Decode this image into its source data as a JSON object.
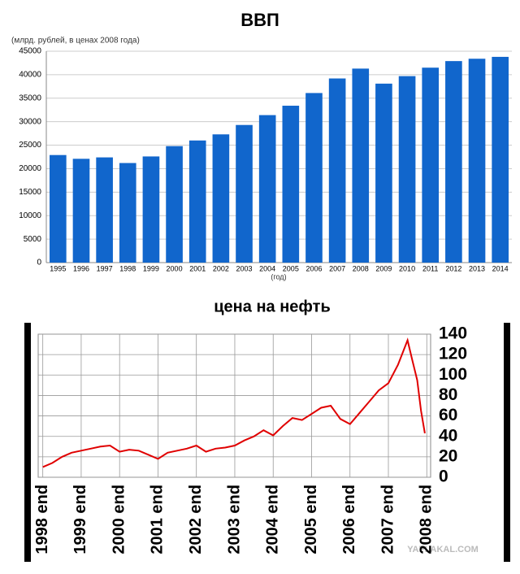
{
  "charts": [
    {
      "chart_data": {
        "type": "bar",
        "title": "ВВП",
        "subtitle": "(млрд. рублей, в ценах 2008 года)",
        "x_label": "(год)",
        "categories": [
          "1995",
          "1996",
          "1997",
          "1998",
          "1999",
          "2000",
          "2001",
          "2002",
          "2003",
          "2004",
          "2005",
          "2006",
          "2007",
          "2008",
          "2009",
          "2010",
          "2011",
          "2012",
          "2013",
          "2014"
        ],
        "values": [
          22900,
          22100,
          22400,
          21200,
          22600,
          24800,
          26000,
          27300,
          29300,
          31400,
          33400,
          36100,
          39200,
          41300,
          38100,
          39700,
          41500,
          42900,
          43400,
          43800
        ],
        "color": "#1166cc",
        "ylim": [
          0,
          45000
        ],
        "yticks": [
          0,
          5000,
          10000,
          15000,
          20000,
          25000,
          30000,
          35000,
          40000,
          45000
        ],
        "grid": true
      }
    },
    {
      "chart_data": {
        "type": "line",
        "title": "цена на нефть",
        "watermark": "YAPLAKAL.COM",
        "x": [
          1999.0,
          1999.25,
          1999.5,
          1999.75,
          2000.0,
          2000.25,
          2000.5,
          2000.75,
          2001.0,
          2001.25,
          2001.5,
          2001.75,
          2002.0,
          2002.25,
          2002.5,
          2002.75,
          2003.0,
          2003.25,
          2003.5,
          2003.75,
          2004.0,
          2004.25,
          2004.5,
          2004.75,
          2005.0,
          2005.25,
          2005.5,
          2005.75,
          2006.0,
          2006.25,
          2006.5,
          2006.75,
          2007.0,
          2007.25,
          2007.5,
          2007.75,
          2008.0,
          2008.25,
          2008.5,
          2008.62,
          2008.75,
          2008.85,
          2008.95
        ],
        "series": [
          {
            "name": "нефть",
            "color": "#e00000",
            "values": [
              10,
              14,
              20,
              24,
              26,
              28,
              30,
              31,
              25,
              27,
              26,
              22,
              18,
              24,
              26,
              28,
              31,
              25,
              28,
              29,
              31,
              36,
              40,
              46,
              41,
              50,
              58,
              56,
              62,
              68,
              70,
              57,
              52,
              63,
              74,
              85,
              92,
              110,
              134,
              115,
              95,
              65,
              43
            ]
          }
        ],
        "xlim": [
          1998.88,
          2009.1
        ],
        "xticks": [
          {
            "value": 1999,
            "label": "1998 end"
          },
          {
            "value": 2000,
            "label": "1999 end"
          },
          {
            "value": 2001,
            "label": "2000 end"
          },
          {
            "value": 2002,
            "label": "2001 end"
          },
          {
            "value": 2003,
            "label": "2002 end"
          },
          {
            "value": 2004,
            "label": "2003 end"
          },
          {
            "value": 2005,
            "label": "2004 end"
          },
          {
            "value": 2006,
            "label": "2005 end"
          },
          {
            "value": 2007,
            "label": "2006 end"
          },
          {
            "value": 2008,
            "label": "2007 end"
          },
          {
            "value": 2009,
            "label": "2008 end"
          }
        ],
        "ylim": [
          0,
          140
        ],
        "yticks": [
          0,
          20,
          40,
          60,
          80,
          100,
          120,
          140
        ],
        "grid": true
      }
    }
  ]
}
